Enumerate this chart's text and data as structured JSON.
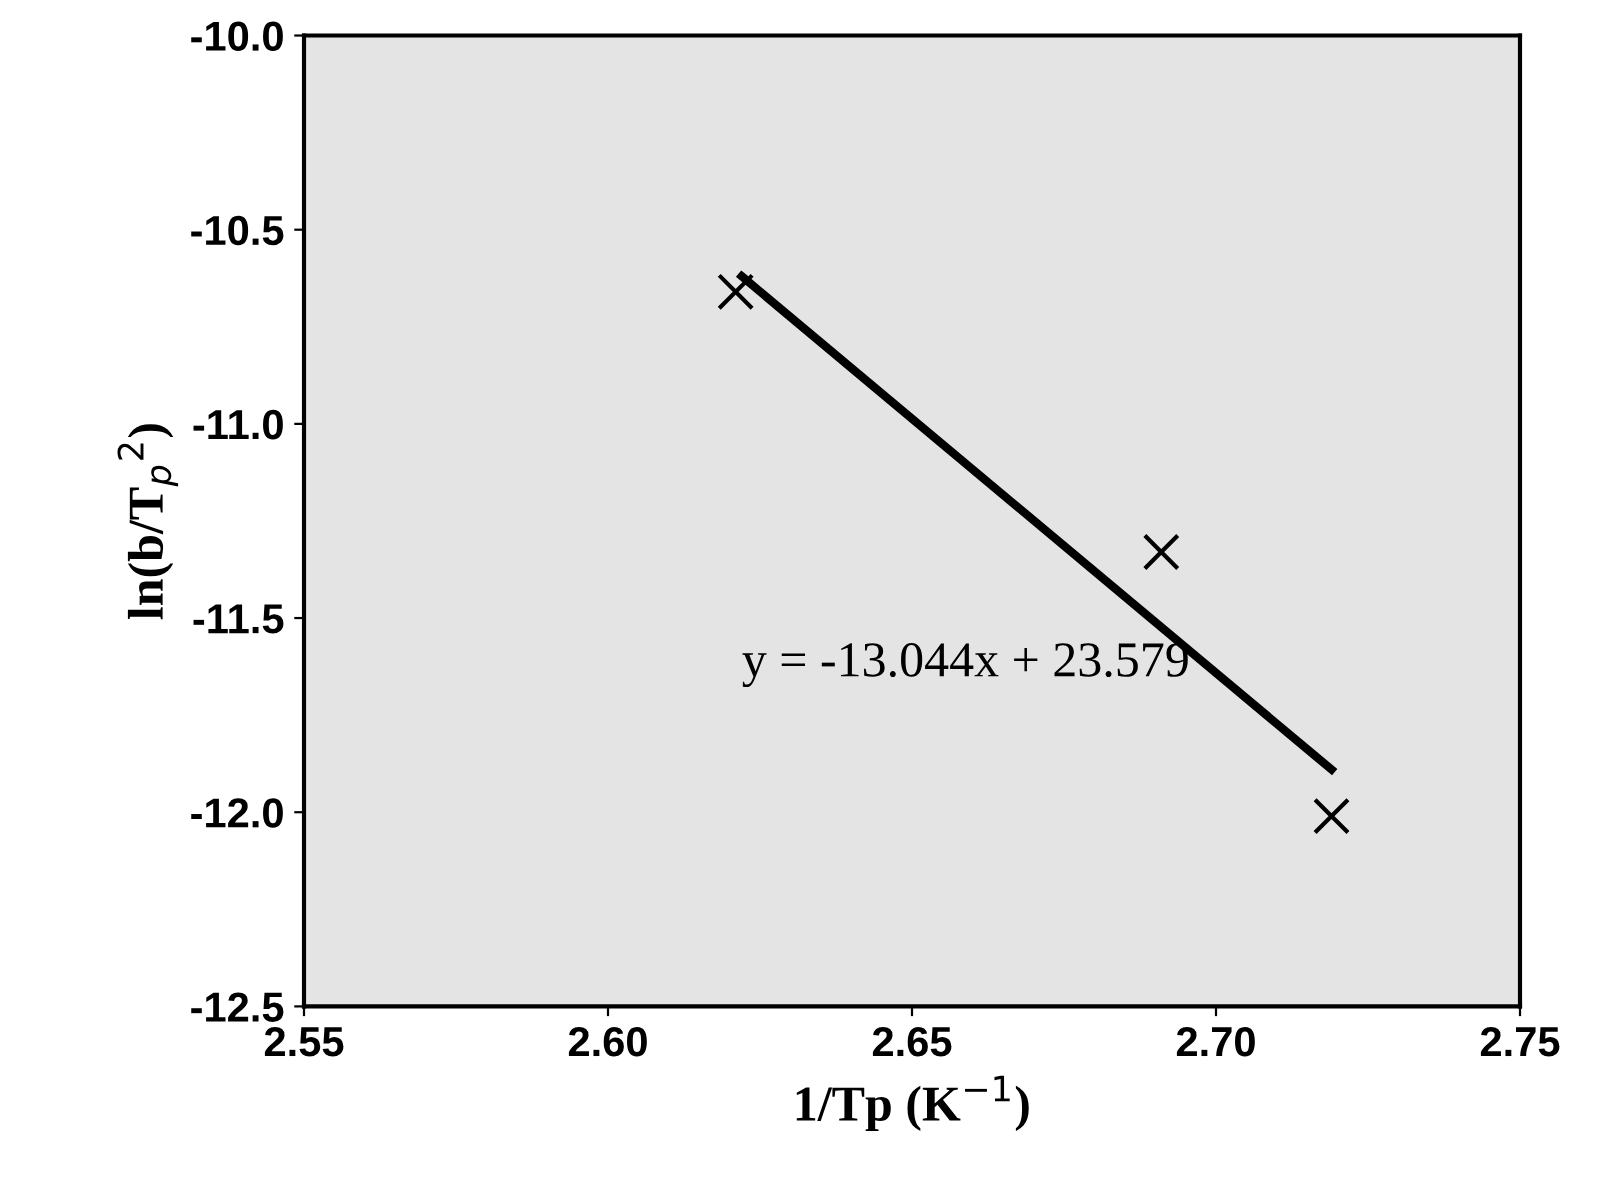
{
  "chart_data": {
    "type": "scatter",
    "xlabel": "1/Tp (K$^{−1}$)",
    "ylabel": "ln(b/T$_{p}$$^{2}$)",
    "xlim": [
      2.55,
      2.75
    ],
    "xticks": [
      2.55,
      {
        "value": 2.6,
        "label": "2.60"
      },
      {
        "value": 2.65,
        "label": "2.65"
      },
      {
        "value": 2.7,
        "label": "2.70"
      },
      2.75
    ],
    "ylim": [
      -12.5,
      -10.0
    ],
    "yticks": [
      {
        "value": -12.5,
        "label": "-12.5"
      },
      {
        "value": -12.0,
        "label": "-12.0"
      },
      {
        "value": -11.5,
        "label": "-11.5"
      },
      {
        "value": -11.0,
        "label": "-11.0"
      },
      {
        "value": -10.5,
        "label": "-10.5"
      },
      {
        "value": -10.0,
        "label": "-10.0"
      }
    ],
    "grid": false,
    "series": [
      {
        "color": "#000000",
        "marker": "cross",
        "x": [
          2.621,
          2.691,
          2.719
        ],
        "values": [
          -10.66,
          -11.33,
          -12.01
        ]
      },
      {
        "type": "line",
        "color": "#000000",
        "marker": "none",
        "line_style": "solid",
        "x": [
          2.622,
          2.719
        ],
        "values": [
          -10.62,
          -11.89
        ]
      }
    ],
    "annotations": [
      "y = -13.044x + 23.579"
    ]
  }
}
